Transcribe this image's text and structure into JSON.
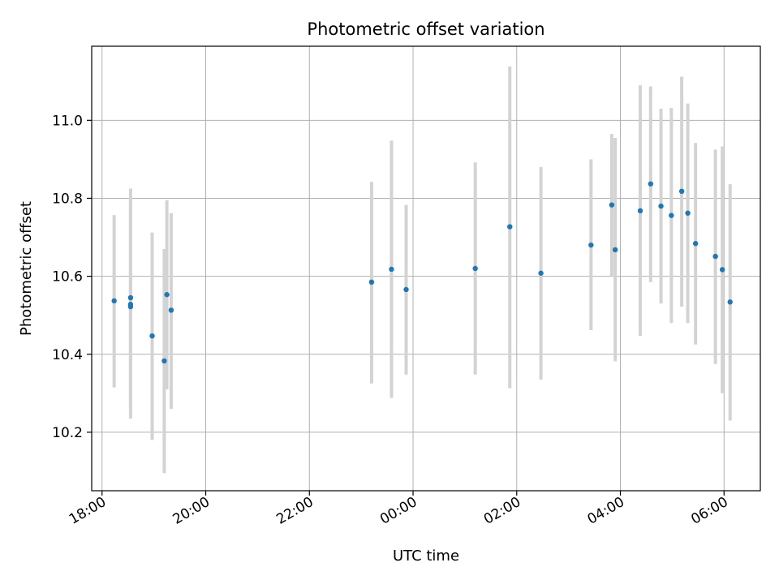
{
  "chart_data": {
    "type": "scatter",
    "title": "Photometric offset variation",
    "xlabel": "UTC time",
    "ylabel": "Photometric offset",
    "xlim": [
      "17:48",
      "06:42"
    ],
    "ylim": [
      10.05,
      11.19
    ],
    "grid": true,
    "x_ticks": [
      "18:00",
      "20:00",
      "22:00",
      "00:00",
      "02:00",
      "04:00",
      "06:00"
    ],
    "y_ticks": [
      "10.2",
      "10.4",
      "10.6",
      "10.8",
      "11.0"
    ],
    "colors": {
      "marker": "#1f77b4",
      "errorbar": "#d3d3d3",
      "grid": "#b0b0b0"
    },
    "series": [
      {
        "points": [
          {
            "t": "18:14",
            "y": 10.537,
            "lo": 10.315,
            "hi": 10.757
          },
          {
            "t": "18:33",
            "y": 10.545,
            "lo": 10.235,
            "hi": 10.825
          },
          {
            "t": "18:33",
            "y": 10.528,
            "lo": 10.27,
            "hi": 10.8
          },
          {
            "t": "18:33",
            "y": 10.522,
            "lo": 10.26,
            "hi": 10.79
          },
          {
            "t": "18:58",
            "y": 10.447,
            "lo": 10.18,
            "hi": 10.712
          },
          {
            "t": "19:12",
            "y": 10.383,
            "lo": 10.095,
            "hi": 10.67
          },
          {
            "t": "19:15",
            "y": 10.553,
            "lo": 10.31,
            "hi": 10.795
          },
          {
            "t": "19:20",
            "y": 10.513,
            "lo": 10.26,
            "hi": 10.762
          },
          {
            "t": "23:12",
            "y": 10.585,
            "lo": 10.325,
            "hi": 10.842
          },
          {
            "t": "23:35",
            "y": 10.618,
            "lo": 10.288,
            "hi": 10.948
          },
          {
            "t": "23:52",
            "y": 10.566,
            "lo": 10.348,
            "hi": 10.783
          },
          {
            "t": "01:12",
            "y": 10.62,
            "lo": 10.348,
            "hi": 10.892
          },
          {
            "t": "01:52",
            "y": 10.727,
            "lo": 10.313,
            "hi": 11.138
          },
          {
            "t": "02:28",
            "y": 10.608,
            "lo": 10.335,
            "hi": 10.88
          },
          {
            "t": "03:26",
            "y": 10.68,
            "lo": 10.462,
            "hi": 10.9
          },
          {
            "t": "03:50",
            "y": 10.783,
            "lo": 10.6,
            "hi": 10.965
          },
          {
            "t": "03:54",
            "y": 10.668,
            "lo": 10.382,
            "hi": 10.955
          },
          {
            "t": "04:23",
            "y": 10.768,
            "lo": 10.447,
            "hi": 11.09
          },
          {
            "t": "04:35",
            "y": 10.837,
            "lo": 10.585,
            "hi": 11.087
          },
          {
            "t": "04:47",
            "y": 10.78,
            "lo": 10.53,
            "hi": 11.03
          },
          {
            "t": "04:59",
            "y": 10.756,
            "lo": 10.48,
            "hi": 11.032
          },
          {
            "t": "05:11",
            "y": 10.818,
            "lo": 10.522,
            "hi": 11.112
          },
          {
            "t": "05:18",
            "y": 10.762,
            "lo": 10.48,
            "hi": 11.043
          },
          {
            "t": "05:27",
            "y": 10.684,
            "lo": 10.425,
            "hi": 10.942
          },
          {
            "t": "05:50",
            "y": 10.651,
            "lo": 10.375,
            "hi": 10.925
          },
          {
            "t": "05:58",
            "y": 10.617,
            "lo": 10.3,
            "hi": 10.933
          },
          {
            "t": "06:07",
            "y": 10.534,
            "lo": 10.23,
            "hi": 10.836
          }
        ]
      }
    ]
  }
}
